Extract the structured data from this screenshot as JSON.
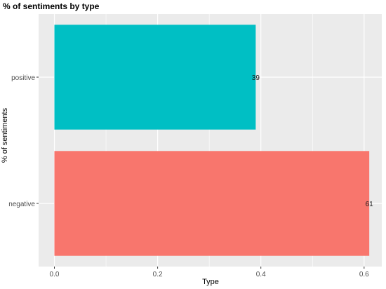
{
  "chart_data": {
    "type": "bar",
    "orientation": "horizontal",
    "title": "% of sentiments by type",
    "xlabel": "Type",
    "ylabel": "% of sentiments",
    "categories": [
      "positive",
      "negative"
    ],
    "values": [
      0.39,
      0.61
    ],
    "data_labels": [
      "39",
      "61"
    ],
    "colors": [
      "#00BFC4",
      "#F8766D"
    ],
    "x_ticks": [
      "0.0",
      "0.2",
      "0.4",
      "0.6"
    ],
    "xlim": [
      0,
      0.64
    ],
    "grid": true,
    "panel_background": "#EBEBEB",
    "gridline_color": "#FFFFFF"
  }
}
